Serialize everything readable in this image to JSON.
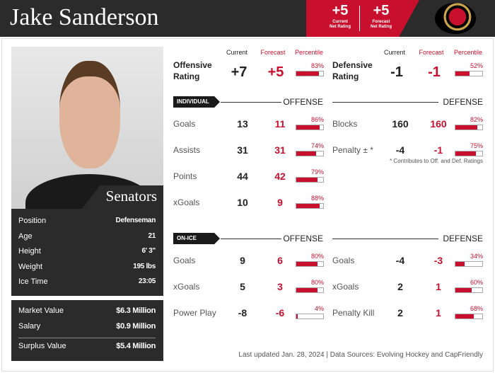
{
  "header": {
    "name": "Jake Sanderson",
    "net_ratings": [
      {
        "value": "+5",
        "caption": [
          "Current",
          "Net Rating"
        ]
      },
      {
        "value": "+5",
        "caption": [
          "Forecast",
          "Net Rating"
        ]
      }
    ]
  },
  "profile": {
    "team": "Senators",
    "details": [
      [
        "Position",
        "Defenseman"
      ],
      [
        "Age",
        "21"
      ],
      [
        "Height",
        "6' 3\""
      ],
      [
        "Weight",
        "195 lbs"
      ],
      [
        "Ice Time",
        "23:05"
      ]
    ],
    "contract": [
      [
        "Market Value",
        "$6.3 Million"
      ],
      [
        "Salary",
        "$0.9 Million"
      ],
      [
        "Surplus Value",
        "$5.4 Million"
      ]
    ]
  },
  "ratings": {
    "columns": [
      "Current",
      "Forecast",
      "Percentile"
    ],
    "offensive": {
      "label": "Offensive Rating",
      "current": "+7",
      "forecast": "+5",
      "percentile": {
        "value": 83,
        "label": "83%"
      }
    },
    "defensive": {
      "label": "Defensive Rating",
      "current": -1,
      "forecast": -1,
      "percentile": {
        "value": 52,
        "label": "52%"
      }
    }
  },
  "sections": [
    {
      "tag": "INDIVIDUAL",
      "offense_title": "OFFENSE",
      "defense_title": "DEFENSE",
      "offense": [
        {
          "label": "Goals",
          "current": 13,
          "forecast": 11,
          "percentile": {
            "value": 86,
            "label": "86%"
          }
        },
        {
          "label": "Assists",
          "current": 31,
          "forecast": 31,
          "percentile": {
            "value": 74,
            "label": "74%"
          }
        },
        {
          "label": "Points",
          "current": 44,
          "forecast": 42,
          "percentile": {
            "value": 79,
            "label": "79%"
          }
        },
        {
          "label": "xGoals",
          "current": 10,
          "forecast": 9,
          "percentile": {
            "value": 88,
            "label": "88%"
          }
        }
      ],
      "defense": [
        {
          "label": "Blocks",
          "current": 160,
          "forecast": 160,
          "percentile": {
            "value": 82,
            "label": "82%"
          }
        },
        {
          "label": "Penalty ± *",
          "current": -4,
          "forecast": -1,
          "percentile": {
            "value": 75,
            "label": "75%"
          }
        }
      ],
      "note": "* Contributes to Off. and Def. Ratings"
    },
    {
      "tag": "ON-ICE",
      "offense_title": "OFFENSE",
      "defense_title": "DEFENSE",
      "offense": [
        {
          "label": "Goals",
          "current": 9,
          "forecast": 6,
          "percentile": {
            "value": 80,
            "label": "80%"
          }
        },
        {
          "label": "xGoals",
          "current": 5,
          "forecast": 3,
          "percentile": {
            "value": 80,
            "label": "80%"
          }
        },
        {
          "label": "Power Play",
          "current": -8,
          "forecast": -6,
          "percentile": {
            "value": 4,
            "label": "4%"
          }
        }
      ],
      "defense": [
        {
          "label": "Goals",
          "current": -4,
          "forecast": -3,
          "percentile": {
            "value": 34,
            "label": "34%"
          }
        },
        {
          "label": "xGoals",
          "current": 2,
          "forecast": 1,
          "percentile": {
            "value": 60,
            "label": "60%"
          }
        },
        {
          "label": "Penalty Kill",
          "current": 2,
          "forecast": 1,
          "percentile": {
            "value": 68,
            "label": "68%"
          }
        }
      ]
    }
  ],
  "footer": "Last updated Jan. 28, 2024 | Data Sources: Evolving Hockey and CapFriendly"
}
